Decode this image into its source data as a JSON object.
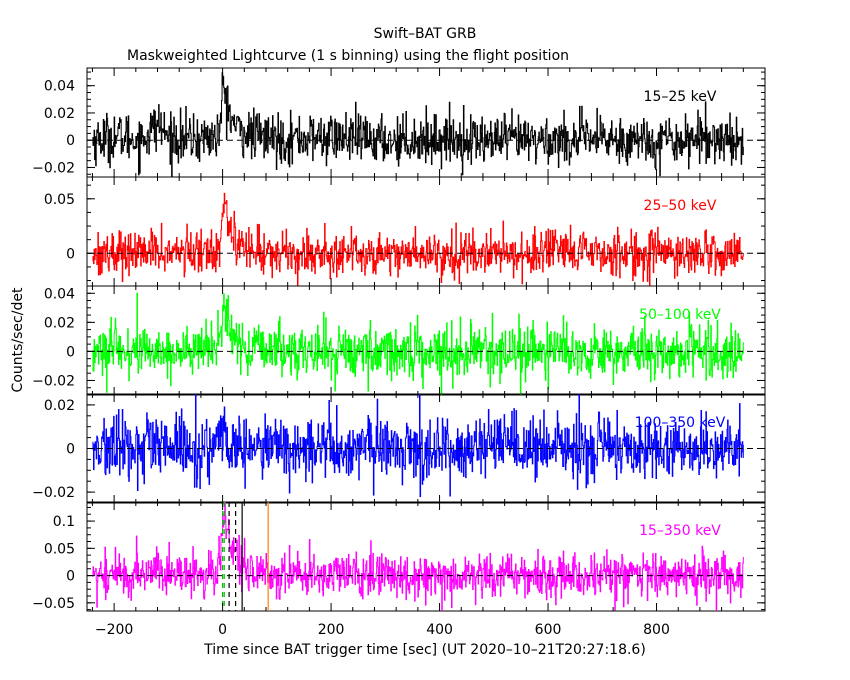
{
  "chart_data": {
    "type": "line",
    "title": "Swift–BAT GRB",
    "subtitle": "Maskweighted Lightcurve (1 s binning) using the flight position",
    "xlabel": "Time since BAT trigger time [sec] (UT 2020–10–21T20:27:18.6)",
    "ylabel": "Counts/sec/det",
    "xlim": [
      -250,
      1000
    ],
    "xticks": [
      -200,
      0,
      200,
      400,
      600,
      800
    ],
    "xtick_labels": [
      "−200",
      "0",
      "200",
      "400",
      "600",
      "800"
    ],
    "grid": false,
    "panels": [
      {
        "band": "15–25 keV",
        "color": "#000000",
        "ylim": [
          -0.027,
          0.053
        ],
        "yticks": [
          -0.02,
          0,
          0.02,
          0.04
        ],
        "ytick_labels": [
          "−0.02",
          "0",
          "0.02",
          "0.04"
        ],
        "x": [
          -240,
          -200,
          -150,
          -120,
          -100,
          -50,
          -20,
          -10,
          -5,
          0,
          2,
          5,
          8,
          12,
          18,
          25,
          35,
          50,
          80,
          120,
          200,
          300,
          400,
          500,
          600,
          700,
          800,
          900,
          960
        ],
        "values": [
          0.0,
          0.003,
          0.0,
          0.012,
          0.002,
          0.001,
          0.002,
          0.003,
          0.01,
          0.035,
          0.04,
          0.032,
          0.026,
          0.02,
          0.014,
          0.009,
          0.006,
          0.004,
          0.002,
          0.001,
          0.002,
          0.0,
          0.001,
          0.0,
          0.0,
          0.001,
          0.0,
          0.002,
          0.0
        ],
        "noise": 0.009
      },
      {
        "band": "25–50 keV",
        "color": "#ff0000",
        "ylim": [
          -0.03,
          0.07
        ],
        "yticks": [
          0,
          0.05
        ],
        "ytick_labels": [
          "0",
          "0.05"
        ],
        "x": [
          -240,
          -200,
          -150,
          -120,
          -100,
          -50,
          -20,
          -10,
          -5,
          0,
          2,
          5,
          8,
          12,
          18,
          25,
          35,
          50,
          80,
          120,
          200,
          300,
          400,
          500,
          600,
          700,
          800,
          900,
          960
        ],
        "values": [
          0.0,
          0.001,
          0.0,
          0.002,
          0.001,
          0.0,
          0.002,
          0.004,
          0.015,
          0.04,
          0.052,
          0.045,
          0.036,
          0.027,
          0.018,
          0.011,
          0.006,
          0.003,
          0.001,
          0.0,
          0.0,
          0.0,
          0.0,
          0.0,
          0.0,
          0.0,
          0.0,
          0.0,
          0.0
        ],
        "noise": 0.01
      },
      {
        "band": "50–100 keV",
        "color": "#00ff00",
        "ylim": [
          -0.03,
          0.045
        ],
        "yticks": [
          -0.02,
          0,
          0.02,
          0.04
        ],
        "ytick_labels": [
          "−0.02",
          "0",
          "0.02",
          "0.04"
        ],
        "x": [
          -240,
          -200,
          -150,
          -120,
          -100,
          -50,
          -20,
          -10,
          -5,
          0,
          2,
          5,
          8,
          12,
          18,
          25,
          35,
          50,
          80,
          120,
          200,
          300,
          400,
          500,
          600,
          700,
          800,
          900,
          960
        ],
        "values": [
          0.0,
          0.0,
          0.0,
          0.001,
          0.0,
          0.0,
          0.001,
          0.003,
          0.01,
          0.026,
          0.034,
          0.029,
          0.022,
          0.016,
          0.01,
          0.006,
          0.003,
          0.002,
          0.001,
          0.0,
          0.0,
          0.0,
          0.0,
          0.0,
          0.0,
          0.0,
          0.0,
          0.0,
          0.0
        ],
        "noise": 0.009
      },
      {
        "band": "100–350 keV",
        "color": "#0000ff",
        "ylim": [
          -0.025,
          0.025
        ],
        "yticks": [
          -0.02,
          0,
          0.02
        ],
        "ytick_labels": [
          "−0.02",
          "0",
          "0.02"
        ],
        "x": [
          -240,
          -200,
          -150,
          -120,
          -100,
          -50,
          -20,
          -10,
          -5,
          0,
          2,
          5,
          8,
          12,
          18,
          25,
          35,
          50,
          80,
          120,
          200,
          300,
          400,
          500,
          600,
          700,
          800,
          900,
          960
        ],
        "values": [
          0.0,
          0.0,
          0.0,
          0.0,
          0.0,
          0.0,
          0.0,
          0.001,
          0.002,
          0.004,
          0.005,
          0.004,
          0.003,
          0.002,
          0.001,
          0.001,
          0.0,
          0.0,
          0.0,
          0.0,
          0.0,
          0.0,
          0.0,
          0.0,
          0.0,
          0.0,
          0.0,
          0.0,
          0.0
        ],
        "noise": 0.0075
      },
      {
        "band": "15–350 keV",
        "color": "#ff00ff",
        "ylim": [
          -0.065,
          0.135
        ],
        "yticks": [
          -0.05,
          0,
          0.05,
          0.1
        ],
        "ytick_labels": [
          "−0.05",
          "0",
          "0.05",
          "0.1"
        ],
        "x": [
          -240,
          -200,
          -150,
          -120,
          -100,
          -50,
          -20,
          -10,
          -5,
          0,
          2,
          5,
          8,
          12,
          18,
          25,
          35,
          50,
          80,
          120,
          200,
          300,
          400,
          500,
          600,
          700,
          800,
          900,
          960
        ],
        "values": [
          0.0,
          0.003,
          0.0,
          0.015,
          0.003,
          0.001,
          0.005,
          0.01,
          0.035,
          0.1,
          0.125,
          0.108,
          0.086,
          0.064,
          0.043,
          0.027,
          0.015,
          0.009,
          0.004,
          0.001,
          0.002,
          0.0,
          0.001,
          0.0,
          0.0,
          0.001,
          0.0,
          0.002,
          0.0
        ],
        "noise": 0.021,
        "markers": [
          {
            "x": 0,
            "color": "#00c000",
            "dash": true
          },
          {
            "x": 3,
            "color": "#00c000",
            "dash": true
          },
          {
            "x": 12,
            "color": "#000000",
            "dash": true
          },
          {
            "x": 24,
            "color": "#000000",
            "dash": true
          },
          {
            "x": 36,
            "color": "#000000",
            "dash": false
          },
          {
            "x": 84,
            "color": "#ff8000",
            "dash": false
          }
        ]
      }
    ]
  }
}
